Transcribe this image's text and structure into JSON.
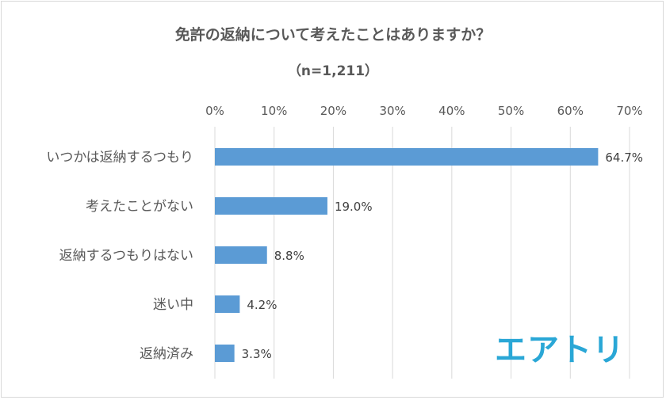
{
  "chart_data": {
    "type": "bar",
    "orientation": "horizontal",
    "title": "免許の返納について考えたことはありますか？",
    "subtitle": "（n=1,211）",
    "categories": [
      "いつかは返納するつもり",
      "考えたことがない",
      "返納するつもりはない",
      "迷い中",
      "返納済み"
    ],
    "values": [
      64.7,
      19.0,
      8.8,
      4.2,
      3.3
    ],
    "value_labels": [
      "64.7%",
      "19.0%",
      "8.8%",
      "4.2%",
      "3.3%"
    ],
    "xlim": [
      0,
      70
    ],
    "x_ticks": [
      "0%",
      "10%",
      "20%",
      "30%",
      "40%",
      "50%",
      "60%",
      "70%"
    ],
    "x_tick_values": [
      0,
      10,
      20,
      30,
      40,
      50,
      60,
      70
    ],
    "axis_position": "top",
    "grid": true,
    "legend": "none",
    "bar_color": "#5b9bd5",
    "grid_color": "#d9d9d9"
  },
  "logo": {
    "text": "エアトリ",
    "color": "#2aa7d6"
  }
}
